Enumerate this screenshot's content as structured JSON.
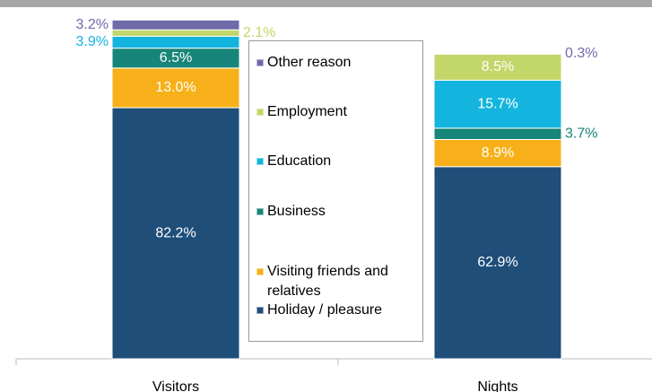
{
  "chart_data": {
    "type": "stacked_bar",
    "categories": [
      "Visitors",
      "Nights"
    ],
    "series": [
      {
        "name": "Holiday / pleasure",
        "color": "#1f4e79",
        "values": [
          82.2,
          62.9
        ],
        "value_labels": [
          "82.2%",
          "62.9%"
        ]
      },
      {
        "name": "Visiting friends and relatives",
        "color": "#f7b019",
        "values": [
          13.0,
          8.9
        ],
        "value_labels": [
          "13.0%",
          "8.9%"
        ]
      },
      {
        "name": "Business",
        "color": "#178579",
        "values": [
          6.5,
          3.7
        ],
        "value_labels": [
          "6.5%",
          "3.7%"
        ]
      },
      {
        "name": "Education",
        "color": "#13b5de",
        "values": [
          3.9,
          15.7
        ],
        "value_labels": [
          "3.9%",
          "15.7%"
        ]
      },
      {
        "name": "Employment",
        "color": "#c2d669",
        "values": [
          2.1,
          8.5
        ],
        "value_labels": [
          "2.1%",
          "8.5%"
        ]
      },
      {
        "name": "Other reason",
        "color": "#6f6aa8",
        "values": [
          3.2,
          0.3
        ],
        "value_labels": [
          "3.2%",
          "0.3%"
        ]
      }
    ],
    "ylim": [
      0,
      111
    ]
  }
}
